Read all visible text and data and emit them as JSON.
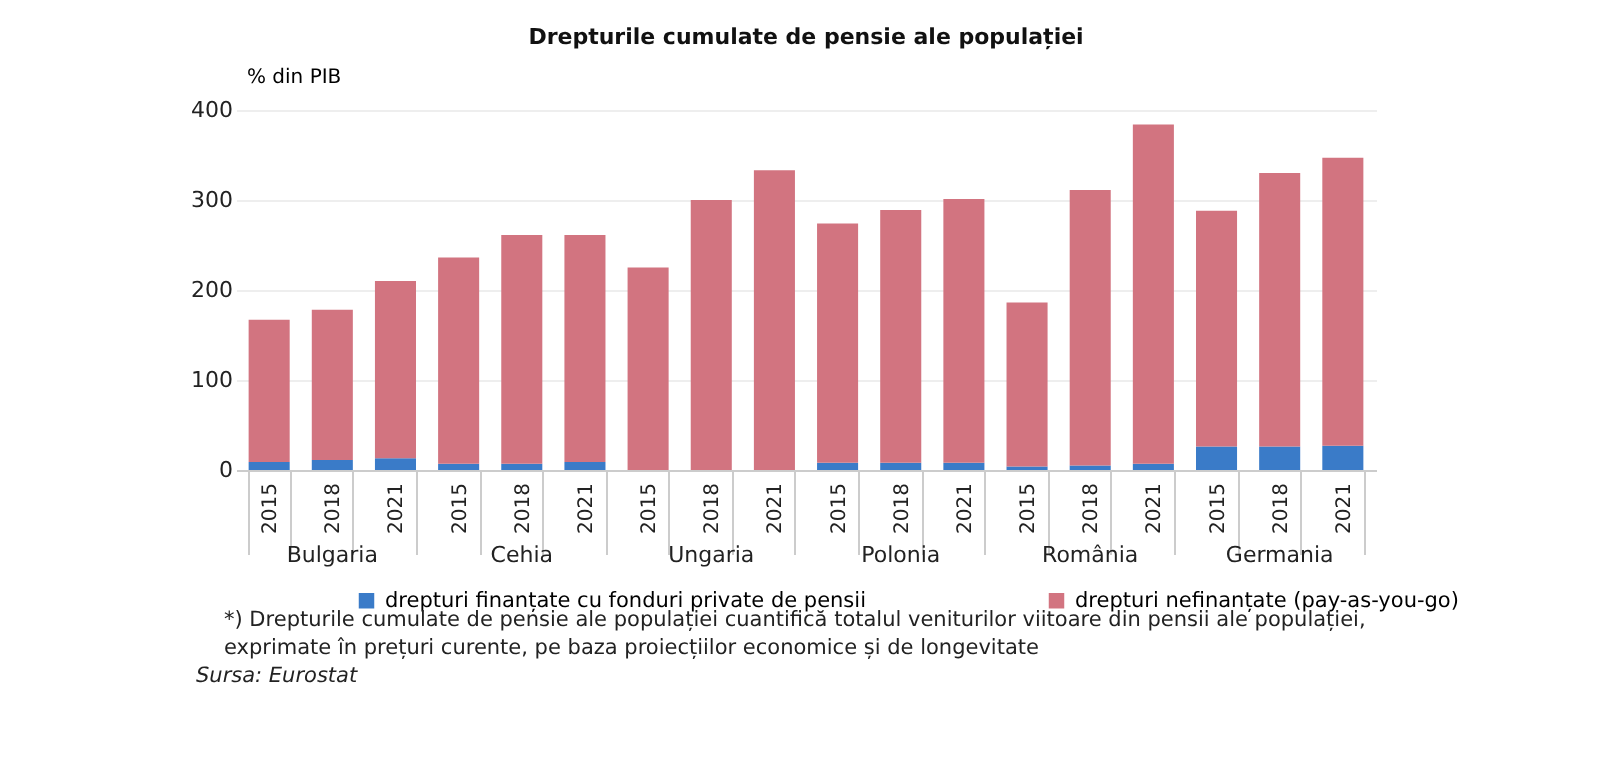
{
  "chart_data": {
    "type": "bar",
    "title": "Drepturile cumulate de pensie ale populației",
    "ylabel": "% din PIB",
    "stacked": true,
    "categories": [
      "2015",
      "2018",
      "2021",
      "2015",
      "2018",
      "2021",
      "2015",
      "2018",
      "2021",
      "2015",
      "2018",
      "2021",
      "2015",
      "2018",
      "2021",
      "2015",
      "2018",
      "2021"
    ],
    "series": [
      {
        "name": "drepturi finanțate cu fonduri private de pensii",
        "color": "#3a7bc8",
        "values": [
          9,
          11,
          13,
          7,
          7,
          9,
          0,
          0,
          0,
          8,
          8,
          8,
          4,
          5,
          7,
          26,
          26,
          27
        ]
      },
      {
        "name": "drepturi nefinanțate (pay-as-you-go)",
        "color": "#d27480",
        "values": [
          158,
          167,
          197,
          229,
          254,
          252,
          225,
          300,
          333,
          266,
          281,
          293,
          182,
          306,
          377,
          262,
          304,
          320
        ]
      }
    ],
    "ylim": [
      0,
      400
    ],
    "yticks": [
      0,
      100,
      200,
      300,
      400
    ],
    "grid": "y",
    "legend": "bottom",
    "annotations": [
      "Bulgaria",
      "Cehia",
      "Ungaria",
      "Polonia",
      "România",
      "Germania",
      "*) Drepturile cumulate de pensie ale populației cuantifică totalul veniturilor viitoare din pensii ale populației, exprimate în prețuri curente, pe baza proiecțiilor economice și de longevitate",
      "Sursa: Eurostat"
    ]
  }
}
